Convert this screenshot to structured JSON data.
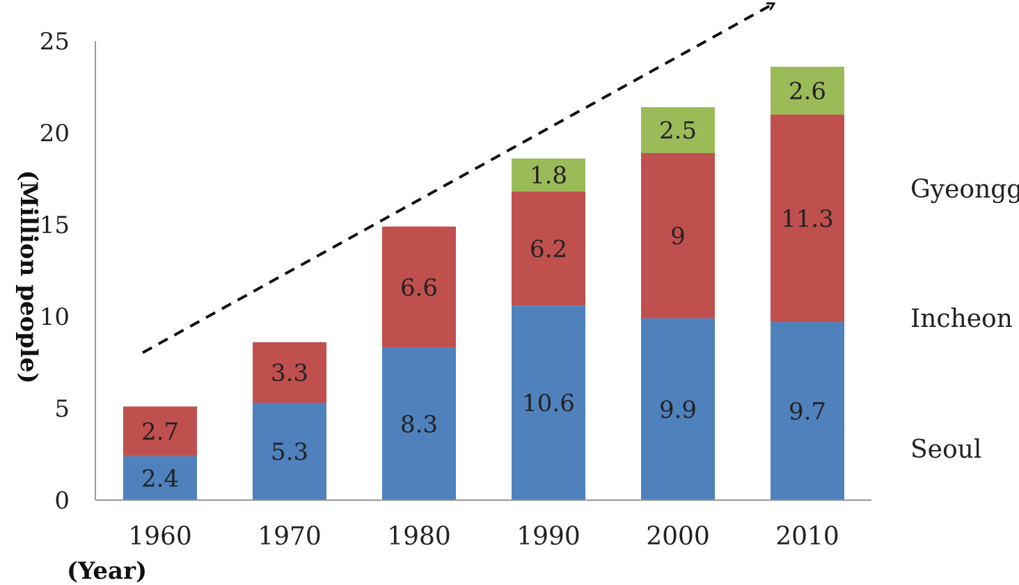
{
  "chart_data": {
    "type": "bar",
    "stacked": true,
    "title": "",
    "xlabel": "(Year)",
    "ylabel": "(Million people)",
    "ylim": [
      0,
      25
    ],
    "yticks": [
      0,
      5,
      10,
      15,
      20,
      25
    ],
    "categories": [
      "1960",
      "1970",
      "1980",
      "1990",
      "2000",
      "2010"
    ],
    "series": [
      {
        "name": "Seoul",
        "color": "#4f81bd",
        "values": [
          2.4,
          5.3,
          8.3,
          10.6,
          9.9,
          9.7
        ],
        "labels": [
          "2.4",
          "5.3",
          "8.3",
          "10.6",
          "9.9",
          "9.7"
        ]
      },
      {
        "name": "Incheon",
        "color": "#c0504d",
        "values": [
          2.7,
          3.3,
          6.6,
          6.2,
          9,
          11.3
        ],
        "labels": [
          "2.7",
          "3.3",
          "6.6",
          "6.2",
          "9",
          "11.3"
        ]
      },
      {
        "name": "Gyeonggi",
        "color": "#9bbb59",
        "values": [
          0,
          0,
          0,
          1.8,
          2.5,
          2.6
        ],
        "labels": [
          "",
          "",
          "",
          "1.8",
          "2.5",
          "2.6"
        ]
      }
    ],
    "legend_placement": "right",
    "annotation": "dashed upward trend arrow"
  }
}
